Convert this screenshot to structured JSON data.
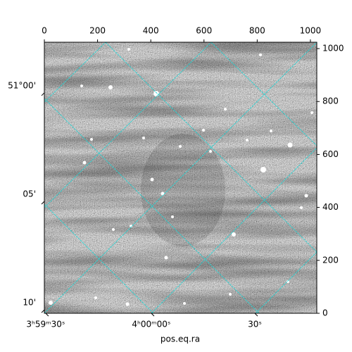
{
  "chart_data": {
    "type": "image",
    "xlabel": "pos.eq.ra",
    "xlim": [
      0,
      1024
    ],
    "ylim": [
      0,
      1024
    ],
    "xticks": [
      0,
      200,
      400,
      600,
      800,
      1000
    ],
    "yticks": [
      0,
      200,
      400,
      600,
      800,
      1000
    ],
    "world_yticks": [
      {
        "value": 833,
        "label": "51°00'"
      },
      {
        "value": 423,
        "label": "05'"
      },
      {
        "value": 13,
        "label": "10'"
      }
    ],
    "world_xticks": [
      {
        "value": 5,
        "label": "3ʰ59ᵐ30ˢ"
      },
      {
        "value": 402,
        "label": "4ʰ00ᵐ00ˢ"
      },
      {
        "value": 791,
        "label": "30ˢ"
      }
    ],
    "grid_color": "#22d4d4"
  }
}
